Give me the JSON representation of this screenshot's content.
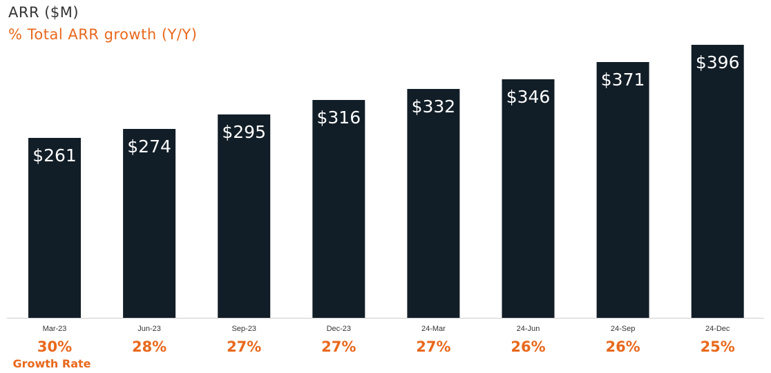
{
  "chart_data": {
    "type": "bar",
    "title": "ARR ($M)",
    "subtitle": "% Total ARR growth (Y/Y)",
    "categories": [
      "Mar-23",
      "Jun-23",
      "Sep-23",
      "Dec-23",
      "24-Mar",
      "24-Jun",
      "24-Sep",
      "24-Dec"
    ],
    "series": [
      {
        "values": [
          261,
          274,
          295,
          316,
          332,
          346,
          371,
          396
        ],
        "labels": [
          "$261",
          "$274",
          "$295",
          "$316",
          "$332",
          "$346",
          "$371",
          "$396"
        ]
      }
    ],
    "growth_rates": [
      "30%",
      "28%",
      "27%",
      "27%",
      "27%",
      "26%",
      "26%",
      "25%"
    ],
    "growth_caption": "Growth Rate",
    "ylim": [
      0,
      400
    ],
    "grid": false,
    "colors": {
      "bar": "#121e27",
      "accent": "#e8681c",
      "axis": "#cccccc",
      "text": "#333333"
    }
  }
}
